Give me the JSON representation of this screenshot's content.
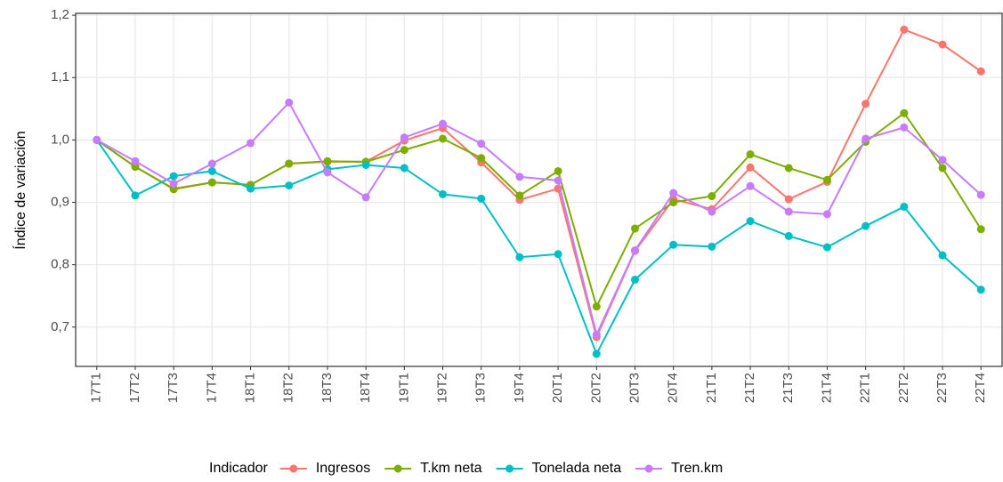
{
  "chart_data": {
    "type": "line",
    "y_label": "Índice de variación",
    "legend_title": "Indicador",
    "categories": [
      "17T1",
      "17T2",
      "17T3",
      "17T4",
      "18T1",
      "18T2",
      "18T3",
      "18T4",
      "19T1",
      "19T2",
      "19T3",
      "19T4",
      "20T1",
      "20T2",
      "20T3",
      "20T4",
      "21T1",
      "21T2",
      "21T3",
      "21T4",
      "22T1",
      "22T2",
      "22T3",
      "22T4"
    ],
    "series": [
      {
        "name": "Ingresos",
        "color": "#F8766D",
        "values": [
          1.0,
          0.957,
          0.922,
          0.932,
          0.928,
          0.962,
          0.965,
          0.965,
          0.999,
          1.019,
          0.964,
          0.904,
          0.922,
          0.684,
          0.822,
          0.905,
          0.889,
          0.956,
          0.905,
          0.933,
          1.058,
          1.177,
          1.153,
          1.11
        ]
      },
      {
        "name": "T.km neta",
        "color": "#7CAE00",
        "values": [
          1.0,
          0.957,
          0.921,
          0.932,
          0.928,
          0.962,
          0.966,
          0.965,
          0.984,
          1.002,
          0.971,
          0.911,
          0.95,
          0.733,
          0.858,
          0.9,
          0.91,
          0.977,
          0.955,
          0.936,
          0.997,
          1.043,
          0.955,
          0.857
        ]
      },
      {
        "name": "Tonelada neta",
        "color": "#00BFC4",
        "values": [
          1.0,
          0.911,
          0.942,
          0.95,
          0.922,
          0.927,
          0.953,
          0.96,
          0.955,
          0.913,
          0.906,
          0.812,
          0.817,
          0.657,
          0.776,
          0.832,
          0.829,
          0.87,
          0.846,
          0.828,
          0.862,
          0.893,
          0.815,
          0.76
        ]
      },
      {
        "name": "Tren.km",
        "color": "#C77CFF",
        "values": [
          1.0,
          0.966,
          0.93,
          0.962,
          0.995,
          1.06,
          0.948,
          0.908,
          1.004,
          1.026,
          0.994,
          0.941,
          0.935,
          0.688,
          0.823,
          0.915,
          0.885,
          0.926,
          0.885,
          0.881,
          1.002,
          1.02,
          0.968,
          0.912
        ]
      }
    ],
    "ylim": [
      0.637,
      1.203
    ],
    "yticks": [
      {
        "value": 0.7,
        "label": "0,7"
      },
      {
        "value": 0.8,
        "label": "0,8"
      },
      {
        "value": 0.9,
        "label": "0,9"
      },
      {
        "value": 1.0,
        "label": "1,0"
      },
      {
        "value": 1.1,
        "label": "1,1"
      },
      {
        "value": 1.2,
        "label": "1,2"
      }
    ],
    "grid": true,
    "legend_position": "bottom"
  }
}
